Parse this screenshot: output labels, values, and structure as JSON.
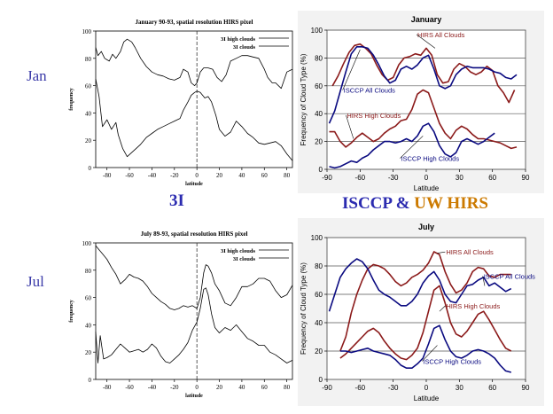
{
  "labels": {
    "row_jan": "Jan",
    "row_jul": "Jul",
    "left_caption": "3I",
    "right_caption_part1": "ISCCP & ",
    "right_caption_part2": "UW HIRS"
  },
  "colors": {
    "row_label": "#3a3aa8",
    "caption_isccp": "#2b2bb0",
    "caption_hirs": "#cc7a00",
    "hirs_line": "#8b1a1a",
    "isccp_line": "#0a0a80",
    "plot_bg": "#ffffff",
    "right_panel_bg": "#f2f2f2"
  },
  "chart_data": [
    {
      "id": "jan-3i",
      "type": "line",
      "title": "January 90-93, spatial resolution HIRS pixel",
      "xlabel": "latitude",
      "ylabel": "frequency",
      "xlim": [
        -90,
        85
      ],
      "ylim": [
        0,
        100
      ],
      "xticks": [
        -80,
        -60,
        -40,
        -20,
        0,
        20,
        40,
        60,
        80
      ],
      "yticks": [
        0,
        20,
        40,
        60,
        80,
        100
      ],
      "legend": [
        "3I high clouds",
        "3I clouds"
      ],
      "legend_position": "top-right",
      "series": [
        {
          "name": "3I high clouds",
          "style": "solid",
          "x": [
            -90,
            -87,
            -84,
            -80,
            -76,
            -72,
            -70,
            -66,
            -62,
            -58,
            -54,
            -50,
            -45,
            -40,
            -35,
            -30,
            -25,
            -20,
            -15,
            -12,
            -8,
            -5,
            -2,
            0,
            3,
            7,
            10,
            13,
            17,
            20,
            25,
            30,
            35,
            40,
            45,
            50,
            55,
            60,
            65,
            70,
            75,
            80,
            85
          ],
          "y": [
            65,
            52,
            30,
            35,
            28,
            33,
            24,
            14,
            8,
            11,
            14,
            17,
            22,
            25,
            28,
            30,
            32,
            34,
            36,
            42,
            48,
            53,
            55,
            56,
            55,
            51,
            52,
            48,
            38,
            28,
            23,
            26,
            34,
            30,
            25,
            22,
            18,
            17,
            18,
            19,
            16,
            10,
            5
          ]
        },
        {
          "name": "3I clouds",
          "style": "solid",
          "x": [
            -90,
            -88,
            -85,
            -82,
            -78,
            -75,
            -72,
            -68,
            -65,
            -62,
            -58,
            -55,
            -50,
            -45,
            -40,
            -35,
            -30,
            -25,
            -20,
            -15,
            -12,
            -8,
            -5,
            -2,
            0,
            3,
            6,
            10,
            14,
            18,
            22,
            26,
            30,
            35,
            40,
            45,
            50,
            55,
            60,
            63,
            67,
            70,
            75,
            80,
            85
          ],
          "y": [
            88,
            82,
            85,
            80,
            78,
            83,
            80,
            85,
            92,
            94,
            92,
            88,
            80,
            74,
            70,
            68,
            67,
            65,
            64,
            66,
            72,
            70,
            62,
            60,
            62,
            70,
            73,
            73,
            72,
            66,
            63,
            68,
            78,
            80,
            82,
            82,
            81,
            80,
            72,
            66,
            62,
            62,
            58,
            70,
            72
          ]
        }
      ]
    },
    {
      "id": "jan-isccp-hirs",
      "type": "line",
      "title": "January",
      "xlabel": "Latitude",
      "ylabel": "Frequency of Cloud Type (%)",
      "xlim": [
        -90,
        90
      ],
      "ylim": [
        0,
        100
      ],
      "xticks": [
        -90,
        -60,
        -30,
        0,
        30,
        60,
        90
      ],
      "yticks": [
        0,
        20,
        40,
        60,
        80,
        100
      ],
      "annotations": [
        "HIRS All Clouds",
        "ISCCP All Clouds",
        "HIRS High Clouds",
        "ISCCP High Clouds"
      ],
      "series": [
        {
          "name": "HIRS All Clouds",
          "color": "#8b1a1a",
          "x": [
            -85,
            -80,
            -75,
            -70,
            -65,
            -60,
            -55,
            -50,
            -45,
            -40,
            -35,
            -30,
            -25,
            -20,
            -15,
            -10,
            -5,
            0,
            5,
            10,
            15,
            20,
            25,
            30,
            35,
            40,
            45,
            50,
            55,
            60,
            65,
            70,
            75,
            80
          ],
          "y": [
            60,
            67,
            76,
            84,
            89,
            90,
            87,
            83,
            75,
            68,
            64,
            66,
            75,
            80,
            81,
            83,
            82,
            87,
            82,
            68,
            62,
            63,
            72,
            76,
            74,
            70,
            68,
            70,
            74,
            71,
            60,
            55,
            48,
            57
          ]
        },
        {
          "name": "ISCCP All Clouds",
          "color": "#0a0a80",
          "x": [
            -88,
            -83,
            -78,
            -73,
            -68,
            -63,
            -58,
            -53,
            -48,
            -43,
            -38,
            -33,
            -28,
            -23,
            -18,
            -13,
            -8,
            -3,
            2,
            7,
            12,
            17,
            22,
            27,
            32,
            37,
            42,
            47,
            52,
            57,
            62,
            67,
            72,
            77,
            82
          ],
          "y": [
            33,
            42,
            56,
            70,
            83,
            88,
            88,
            87,
            82,
            75,
            67,
            62,
            64,
            72,
            74,
            72,
            75,
            80,
            82,
            72,
            60,
            58,
            60,
            68,
            72,
            74,
            73,
            73,
            73,
            72,
            70,
            69,
            66,
            65,
            68
          ]
        },
        {
          "name": "HIRS High Clouds",
          "color": "#8b1a1a",
          "x": [
            -88,
            -83,
            -78,
            -73,
            -68,
            -63,
            -58,
            -53,
            -48,
            -43,
            -38,
            -33,
            -28,
            -23,
            -18,
            -13,
            -8,
            -3,
            2,
            7,
            12,
            17,
            22,
            27,
            32,
            37,
            42,
            47,
            52,
            57,
            62,
            67,
            72,
            77,
            82
          ],
          "y": [
            27,
            27,
            20,
            16,
            19,
            23,
            26,
            23,
            20,
            22,
            26,
            29,
            31,
            35,
            36,
            43,
            54,
            57,
            55,
            44,
            33,
            26,
            22,
            28,
            31,
            29,
            25,
            22,
            22,
            21,
            20,
            19,
            17,
            15,
            16
          ]
        },
        {
          "name": "ISCCP High Clouds",
          "color": "#0a0a80",
          "x": [
            -88,
            -83,
            -78,
            -73,
            -68,
            -63,
            -58,
            -53,
            -48,
            -43,
            -38,
            -33,
            -28,
            -23,
            -18,
            -13,
            -8,
            -3,
            2,
            7,
            12,
            17,
            22,
            27,
            32,
            37,
            42,
            47,
            52,
            57,
            62
          ],
          "y": [
            2,
            1,
            2,
            4,
            6,
            5,
            8,
            10,
            14,
            17,
            20,
            20,
            19,
            20,
            22,
            20,
            24,
            31,
            33,
            27,
            17,
            11,
            9,
            12,
            20,
            22,
            20,
            18,
            20,
            23,
            26
          ]
        }
      ]
    },
    {
      "id": "jul-3i",
      "type": "line",
      "title": "July 89-93, spatial resolution HIRS pixel",
      "xlabel": "latitude",
      "ylabel": "frequency",
      "xlim": [
        -90,
        85
      ],
      "ylim": [
        0,
        100
      ],
      "xticks": [
        -80,
        -60,
        -40,
        -20,
        0,
        20,
        40,
        60,
        80
      ],
      "yticks": [
        0,
        20,
        40,
        60,
        80,
        100
      ],
      "legend": [
        "3I high clouds",
        "3I clouds"
      ],
      "legend_position": "top-right",
      "series": [
        {
          "name": "3I high clouds",
          "style": "solid",
          "x": [
            -90,
            -88,
            -86,
            -83,
            -80,
            -76,
            -72,
            -68,
            -64,
            -60,
            -56,
            -52,
            -48,
            -44,
            -40,
            -36,
            -32,
            -28,
            -24,
            -20,
            -16,
            -12,
            -8,
            -4,
            0,
            3,
            6,
            8,
            10,
            13,
            16,
            20,
            25,
            30,
            35,
            40,
            45,
            50,
            55,
            60,
            65,
            70,
            75,
            80,
            85
          ],
          "y": [
            35,
            12,
            32,
            15,
            16,
            18,
            22,
            26,
            23,
            20,
            21,
            22,
            20,
            22,
            26,
            23,
            17,
            13,
            12,
            15,
            18,
            22,
            27,
            36,
            42,
            52,
            66,
            67,
            62,
            48,
            38,
            34,
            38,
            36,
            40,
            35,
            30,
            28,
            25,
            25,
            20,
            18,
            15,
            12,
            14
          ]
        },
        {
          "name": "3I clouds",
          "style": "solid",
          "x": [
            -90,
            -87,
            -84,
            -80,
            -76,
            -72,
            -68,
            -64,
            -60,
            -56,
            -52,
            -48,
            -44,
            -40,
            -36,
            -32,
            -28,
            -24,
            -20,
            -16,
            -12,
            -8,
            -4,
            0,
            3,
            6,
            8,
            10,
            13,
            16,
            20,
            25,
            30,
            35,
            40,
            45,
            50,
            55,
            60,
            65,
            70,
            75,
            80,
            85
          ],
          "y": [
            98,
            95,
            92,
            88,
            82,
            77,
            70,
            73,
            77,
            75,
            74,
            72,
            68,
            63,
            60,
            57,
            55,
            52,
            51,
            52,
            54,
            53,
            54,
            52,
            60,
            78,
            84,
            83,
            78,
            70,
            65,
            56,
            54,
            60,
            68,
            68,
            70,
            74,
            74,
            72,
            65,
            60,
            62,
            69
          ]
        }
      ]
    },
    {
      "id": "jul-isccp-hirs",
      "type": "line",
      "title": "July",
      "xlabel": "Latitude",
      "ylabel": "Frequency of Cloud Type (%)",
      "xlim": [
        -90,
        90
      ],
      "ylim": [
        0,
        100
      ],
      "xticks": [
        -90,
        -60,
        -30,
        0,
        30,
        60,
        90
      ],
      "yticks": [
        0,
        20,
        40,
        60,
        80,
        100
      ],
      "annotations": [
        "HIRS All Clouds",
        "ISCCP All Clouds",
        "HIRS High Clouds",
        "ISCCP High  Clouds"
      ],
      "series": [
        {
          "name": "HIRS All Clouds",
          "color": "#8b1a1a",
          "x": [
            -78,
            -73,
            -68,
            -63,
            -58,
            -53,
            -48,
            -43,
            -38,
            -33,
            -28,
            -23,
            -18,
            -13,
            -8,
            -3,
            2,
            7,
            12,
            17,
            22,
            27,
            32,
            37,
            42,
            47,
            52,
            57,
            62,
            67,
            72,
            77
          ],
          "y": [
            20,
            30,
            47,
            60,
            70,
            78,
            81,
            80,
            78,
            74,
            69,
            66,
            68,
            72,
            74,
            77,
            82,
            90,
            88,
            76,
            67,
            61,
            63,
            68,
            76,
            79,
            78,
            73,
            72,
            74,
            74,
            74
          ]
        },
        {
          "name": "ISCCP All Clouds",
          "color": "#0a0a80",
          "x": [
            -88,
            -83,
            -78,
            -73,
            -68,
            -63,
            -58,
            -53,
            -48,
            -43,
            -38,
            -33,
            -28,
            -23,
            -18,
            -13,
            -8,
            -3,
            2,
            7,
            12,
            17,
            22,
            27,
            32,
            37,
            42,
            47,
            52,
            57,
            62,
            67,
            72,
            77
          ],
          "y": [
            48,
            60,
            72,
            78,
            82,
            85,
            83,
            78,
            70,
            63,
            60,
            58,
            55,
            52,
            52,
            55,
            60,
            68,
            73,
            76,
            70,
            60,
            55,
            54,
            60,
            66,
            67,
            70,
            72,
            66,
            68,
            65,
            62,
            64
          ]
        },
        {
          "name": "HIRS High Clouds",
          "color": "#8b1a1a",
          "x": [
            -78,
            -73,
            -68,
            -63,
            -58,
            -53,
            -48,
            -43,
            -38,
            -33,
            -28,
            -23,
            -18,
            -13,
            -8,
            -3,
            2,
            7,
            12,
            17,
            22,
            27,
            32,
            37,
            42,
            47,
            52,
            57,
            62,
            67,
            72,
            77
          ],
          "y": [
            15,
            18,
            22,
            26,
            30,
            34,
            36,
            33,
            27,
            22,
            18,
            15,
            14,
            17,
            22,
            33,
            48,
            63,
            66,
            54,
            40,
            32,
            30,
            34,
            40,
            46,
            48,
            42,
            35,
            28,
            22,
            20
          ]
        },
        {
          "name": "ISCCP High  Clouds",
          "color": "#0a0a80",
          "x": [
            -78,
            -73,
            -68,
            -63,
            -58,
            -53,
            -48,
            -43,
            -38,
            -33,
            -28,
            -23,
            -18,
            -13,
            -8,
            -3,
            2,
            7,
            12,
            17,
            22,
            27,
            32,
            37,
            42,
            47,
            52,
            57,
            62,
            67,
            72,
            77
          ],
          "y": [
            20,
            20,
            19,
            20,
            21,
            22,
            20,
            19,
            18,
            17,
            14,
            10,
            8,
            8,
            11,
            15,
            25,
            36,
            38,
            28,
            20,
            16,
            15,
            17,
            20,
            21,
            20,
            18,
            15,
            10,
            6,
            5
          ]
        }
      ]
    }
  ]
}
